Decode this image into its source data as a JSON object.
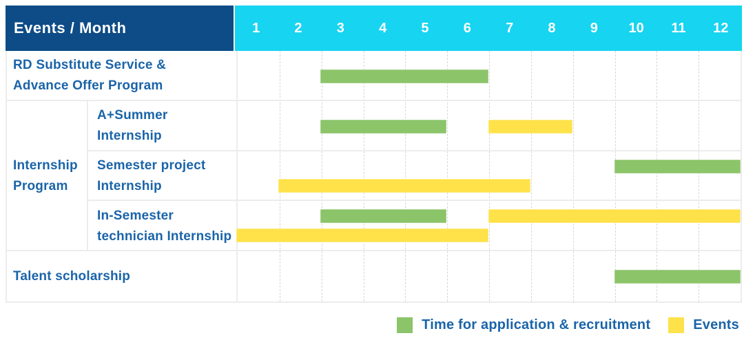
{
  "table": {
    "corner_label": "Events / Month",
    "months": [
      "1",
      "2",
      "3",
      "4",
      "5",
      "6",
      "7",
      "8",
      "9",
      "10",
      "11",
      "12"
    ]
  },
  "chart_data": {
    "type": "gantt",
    "title": "Events / Month",
    "x_axis": {
      "label": "Month",
      "ticks": [
        "1",
        "2",
        "3",
        "4",
        "5",
        "6",
        "7",
        "8",
        "9",
        "10",
        "11",
        "12"
      ],
      "range": [
        1,
        12
      ]
    },
    "series_legend": [
      {
        "name": "Time for application & recruitment",
        "key": "recruitment",
        "color": "#8CC46A"
      },
      {
        "name": "Events",
        "key": "event",
        "color": "#FFE24A"
      }
    ],
    "group_label": "Internship Program",
    "group_label_lines": [
      "Internship",
      "Program"
    ],
    "group_rows": [
      "A+Summer Internship",
      "Semester project Internship",
      "In-Semester technician Internship"
    ],
    "rows": [
      {
        "label": "RD Substitute Service & Advance Offer Program",
        "label_lines": [
          "RD Substitute Service &",
          "Advance Offer Program"
        ],
        "group": null,
        "lines": [
          [
            {
              "series": "recruitment",
              "from": 3,
              "to": 6
            }
          ]
        ]
      },
      {
        "label": "A+Summer Internship",
        "label_lines": [
          "A+Summer",
          "Internship"
        ],
        "group": "Internship Program",
        "lines": [
          [
            {
              "series": "recruitment",
              "from": 3,
              "to": 5
            },
            {
              "series": "event",
              "from": 7,
              "to": 8
            }
          ]
        ]
      },
      {
        "label": "Semester project Internship",
        "label_lines": [
          "Semester project",
          "Internship"
        ],
        "group": "Internship Program",
        "lines": [
          [
            {
              "series": "recruitment",
              "from": 10,
              "to": 12
            }
          ],
          [
            {
              "series": "event",
              "from": 2,
              "to": 7
            }
          ]
        ]
      },
      {
        "label": "In-Semester technician Internship",
        "label_lines": [
          "In-Semester",
          "technician Internship"
        ],
        "group": "Internship Program",
        "lines": [
          [
            {
              "series": "recruitment",
              "from": 3,
              "to": 5
            },
            {
              "series": "event",
              "from": 7,
              "to": 12
            }
          ],
          [
            {
              "series": "event",
              "from": 1,
              "to": 6
            }
          ]
        ]
      },
      {
        "label": "Talent scholarship",
        "label_lines": [
          "Talent scholarship"
        ],
        "group": null,
        "lines": [
          [
            {
              "series": "recruitment",
              "from": 10,
              "to": 12
            }
          ]
        ]
      }
    ]
  },
  "legend": {
    "items": [
      {
        "label": "Time for application & recruitment",
        "series": "recruitment",
        "color": "#8CC46A"
      },
      {
        "label": "Events",
        "series": "event",
        "color": "#FFE24A"
      }
    ]
  },
  "colors": {
    "header_bg": "#0D4C86",
    "month_header_bg": "#17D4F1",
    "recruitment_green": "#8CC46A",
    "event_yellow": "#FFE24A",
    "label_text": "#1A64A9",
    "grid_solid": "#ECECEC",
    "grid_dashed": "#D6D6D6"
  }
}
